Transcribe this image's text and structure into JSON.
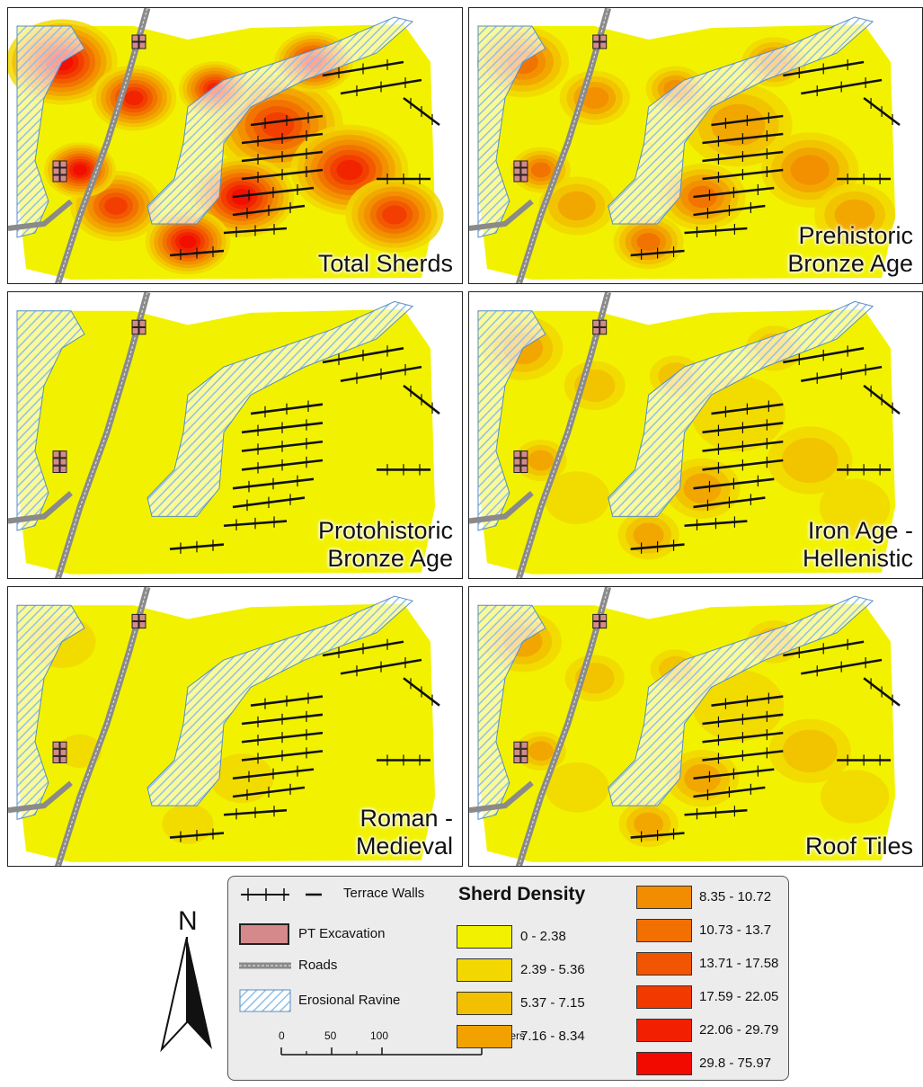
{
  "panels": [
    {
      "id": "total",
      "title_lines": [
        "Total Sherds"
      ],
      "intensity": 1.0
    },
    {
      "id": "prehistoric",
      "title_lines": [
        "Prehistoric",
        "Bronze Age"
      ],
      "intensity": 0.6
    },
    {
      "id": "protohistoric",
      "title_lines": [
        "Protohistoric",
        "Bronze Age"
      ],
      "intensity": 0.05
    },
    {
      "id": "ironage",
      "title_lines": [
        "Iron Age -",
        "Hellenistic"
      ],
      "intensity": 0.35
    },
    {
      "id": "roman",
      "title_lines": [
        "Roman -",
        "Medieval"
      ],
      "intensity": 0.08
    },
    {
      "id": "rooftiles",
      "title_lines": [
        "Roof Tiles"
      ],
      "intensity": 0.3
    }
  ],
  "legend": {
    "symbols": [
      {
        "label": "Terrace Walls",
        "icon": "terrace-wall-icon"
      },
      {
        "label": "PT Excavation",
        "icon": "excavation-square-icon",
        "color": "#d48a8a"
      },
      {
        "label": "Roads",
        "icon": "road-icon",
        "color": "#9a9a9a"
      },
      {
        "label": "Erosional Ravine",
        "icon": "ravine-hatch-icon",
        "color": "#8fc0e6"
      }
    ],
    "density_title": "Sherd Density",
    "classes": [
      {
        "label": "0 - 2.38",
        "color": "#f2f200"
      },
      {
        "label": "2.39 - 5.36",
        "color": "#f2d800"
      },
      {
        "label": "5.37 - 7.15",
        "color": "#f2c000"
      },
      {
        "label": "7.16 - 8.34",
        "color": "#f2a200"
      },
      {
        "label": "8.35 - 10.72",
        "color": "#f28c00"
      },
      {
        "label": "10.73 - 13.7",
        "color": "#f27000"
      },
      {
        "label": "13.71 - 17.58",
        "color": "#f25500"
      },
      {
        "label": "17.59 - 22.05",
        "color": "#f23a00"
      },
      {
        "label": "22.06 - 29.79",
        "color": "#f22000"
      },
      {
        "label": "29.8 - 75.97",
        "color": "#f20a00"
      }
    ],
    "scale_ticks": [
      "0",
      "50",
      "100",
      "200 Meters"
    ],
    "north_label": "N"
  }
}
